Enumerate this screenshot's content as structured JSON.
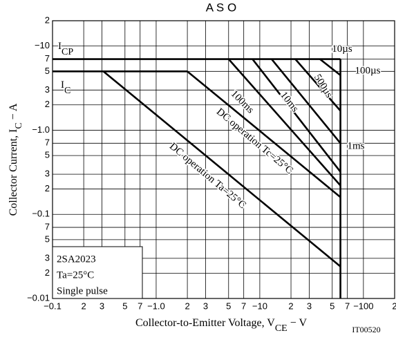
{
  "chart_data": {
    "type": "line",
    "title": "A S O",
    "x_label": [
      "Collector-to-Emitter Voltage, V",
      "CE",
      " − V"
    ],
    "y_label": [
      "Collector Current, I",
      "C",
      " − A"
    ],
    "figure_id": "IT00520",
    "log_x": true,
    "log_y": true,
    "grid": true,
    "color": "#000000",
    "xlim": [
      0.1,
      200
    ],
    "ylim": [
      0.01,
      20
    ],
    "xticks": [
      {
        "value": 0.1,
        "label": "−0.1"
      },
      {
        "value": 0.2,
        "label": "2"
      },
      {
        "value": 0.3,
        "label": "3"
      },
      {
        "value": 0.5,
        "label": "5"
      },
      {
        "value": 0.7,
        "label": "7"
      },
      {
        "value": 1,
        "label": "−1.0"
      },
      2,
      3,
      5,
      7,
      {
        "value": 10,
        "label": "−10"
      },
      {
        "value": 20,
        "label": "2"
      },
      {
        "value": 30,
        "label": "3"
      },
      {
        "value": 50,
        "label": "5"
      },
      {
        "value": 70,
        "label": "7"
      },
      {
        "value": 100,
        "label": "−100"
      },
      {
        "value": 200,
        "label": "2"
      }
    ],
    "yticks": [
      {
        "value": 0.01,
        "label": "−0.01"
      },
      {
        "value": 0.02,
        "label": "2"
      },
      {
        "value": 0.03,
        "label": "3"
      },
      {
        "value": 0.05,
        "label": "5"
      },
      {
        "value": 0.07,
        "label": "7"
      },
      {
        "value": 0.1,
        "label": "−0.1"
      },
      {
        "value": 0.2,
        "label": "2"
      },
      {
        "value": 0.3,
        "label": "3"
      },
      {
        "value": 0.5,
        "label": "5"
      },
      {
        "value": 0.7,
        "label": "7"
      },
      {
        "value": 1,
        "label": "−1.0"
      },
      2,
      3,
      5,
      7,
      {
        "value": 10,
        "label": "−10"
      },
      {
        "value": 20,
        "label": "2"
      }
    ],
    "series": [
      {
        "x": [
          0.1,
          60
        ],
        "values": [
          7,
          7
        ]
      },
      {
        "x": [
          0.1,
          2.0
        ],
        "values": [
          5,
          5
        ]
      },
      {
        "name": "DC operation Ta=25°C",
        "x": [
          0.31,
          60
        ],
        "values": [
          5,
          0.024
        ]
      },
      {
        "name": "DC operation Tc=25°C",
        "x": [
          2.0,
          60
        ],
        "values": [
          5,
          0.16
        ]
      },
      {
        "name": "100ms",
        "x": [
          5.0,
          60
        ],
        "values": [
          7,
          0.22
        ]
      },
      {
        "name": "10ms",
        "x": [
          8.5,
          60
        ],
        "values": [
          7,
          0.32
        ]
      },
      {
        "name": "1ms",
        "x": [
          13,
          60
        ],
        "values": [
          7,
          0.7
        ]
      },
      {
        "name": "500µs",
        "x": [
          22,
          60
        ],
        "values": [
          7,
          1.7
        ]
      },
      {
        "name": "100µs",
        "x": [
          38,
          60
        ],
        "values": [
          7,
          4.5
        ]
      },
      {
        "x": [
          60,
          60
        ],
        "values": [
          7,
          0.01
        ]
      }
    ],
    "annotations": [
      [
        "I",
        "CP"
      ],
      [
        "I",
        "C"
      ],
      [
        "10µs"
      ]
    ],
    "info_box": [
      "2SA2023",
      "Ta=25°C",
      "Single pulse"
    ]
  }
}
